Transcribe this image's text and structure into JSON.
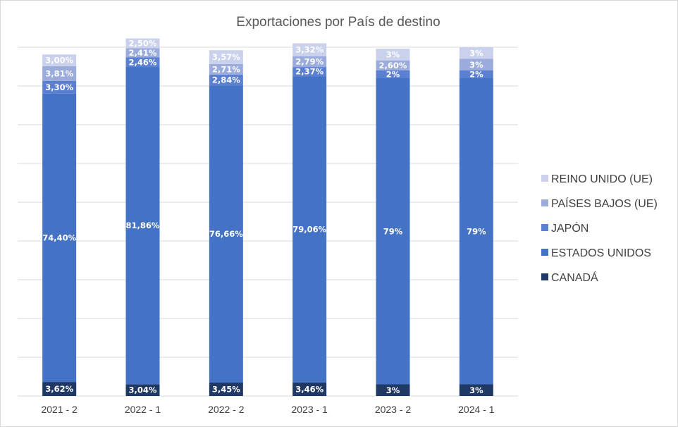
{
  "chart_data": {
    "type": "bar",
    "stacked": true,
    "title": "Exportaciones por País de destino",
    "categories": [
      "2021 - 2",
      "2022 - 1",
      "2022 - 2",
      "2023 - 1",
      "2023 - 2",
      "2024 - 1"
    ],
    "series": [
      {
        "name": "CANADÁ",
        "color": "#203864",
        "values": [
          3.62,
          3.04,
          3.45,
          3.46,
          3,
          3
        ],
        "labels": [
          "3,62%",
          "3,04%",
          "3,45%",
          "3,46%",
          "3%",
          "3%"
        ]
      },
      {
        "name": "ESTADOS UNIDOS",
        "color": "#4472c4",
        "values": [
          74.4,
          81.86,
          76.66,
          79.06,
          79,
          79
        ],
        "labels": [
          "74,40%",
          "81,86%",
          "76,66%",
          "79,06%",
          "79%",
          "79%"
        ]
      },
      {
        "name": "JAPÓN",
        "color": "#5b7fd1",
        "values": [
          3.3,
          2.46,
          2.84,
          2.37,
          2,
          2
        ],
        "labels": [
          "3,30%",
          "2,46%",
          "2,84%",
          "2,37%",
          "2%",
          "2%"
        ]
      },
      {
        "name": "PAÍSES BAJOS (UE)",
        "color": "#9aabdc",
        "values": [
          3.81,
          2.41,
          2.71,
          2.79,
          2.6,
          3
        ],
        "labels": [
          "3,81%",
          "2,41%",
          "2,71%",
          "2,79%",
          "2,60%",
          "3%"
        ]
      },
      {
        "name": "REINO UNIDO (UE)",
        "color": "#c9d1ec",
        "values": [
          3.0,
          2.5,
          3.57,
          3.32,
          3,
          3
        ],
        "labels": [
          "3,00%",
          "2,50%",
          "3,57%",
          "3,32%",
          "3%",
          "3%"
        ]
      }
    ],
    "ylim": [
      0,
      90
    ],
    "grid": true,
    "legend": "right"
  }
}
